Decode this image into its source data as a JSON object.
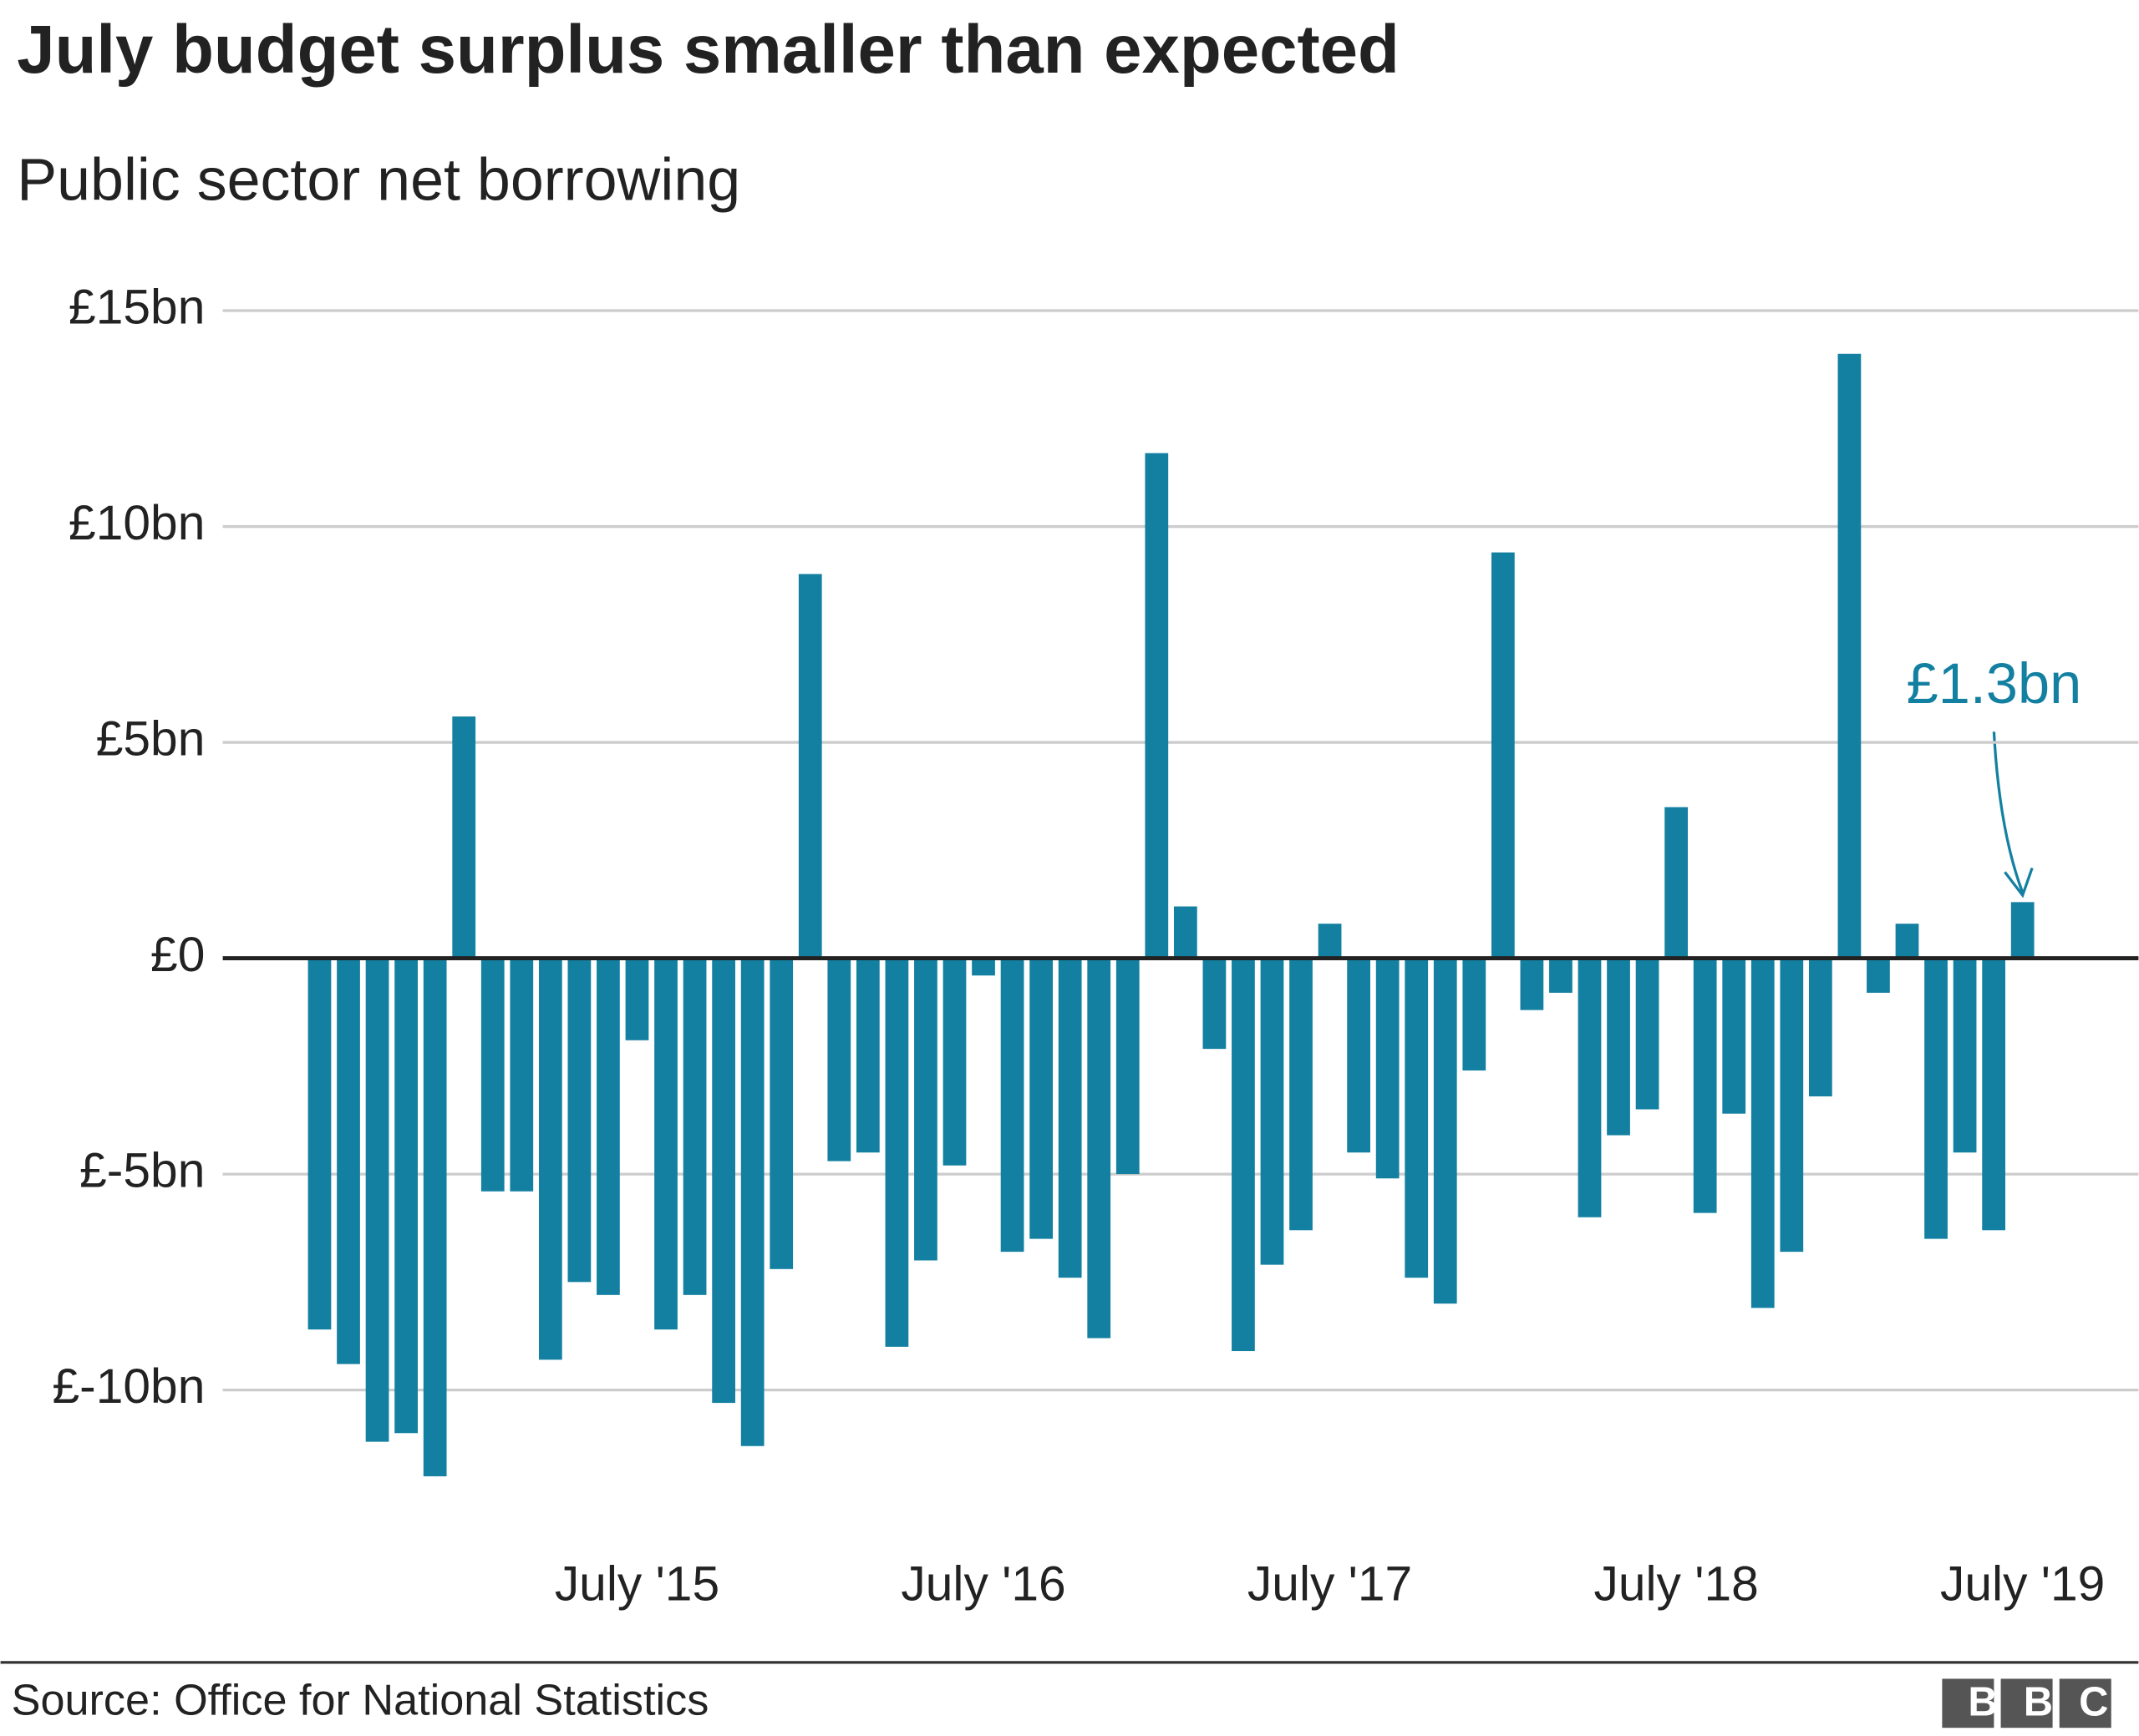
{
  "chart_data": {
    "type": "bar",
    "title": "July budget surplus smaller than expected",
    "subtitle": "Public sector net borrowing",
    "source": "Source: Office for National Statistics",
    "logo": "BBC",
    "color": "#1380a1",
    "grid": true,
    "ylim": [
      -12.5,
      15.5
    ],
    "yticks": [
      {
        "value": -10,
        "label": "£-10bn"
      },
      {
        "value": -5,
        "label": "£-5bn"
      },
      {
        "value": 0,
        "label": "£0"
      },
      {
        "value": 5,
        "label": "£5bn"
      },
      {
        "value": 10,
        "label": "£10bn"
      },
      {
        "value": 15,
        "label": "£15bn"
      }
    ],
    "categories": [
      null,
      null,
      null,
      null,
      null,
      null,
      null,
      null,
      null,
      null,
      null,
      "July '15",
      null,
      null,
      null,
      null,
      null,
      null,
      null,
      null,
      null,
      null,
      null,
      "July '16",
      null,
      null,
      null,
      null,
      null,
      null,
      null,
      null,
      null,
      null,
      null,
      "July '17",
      null,
      null,
      null,
      null,
      null,
      null,
      null,
      null,
      null,
      null,
      null,
      "July '18",
      null,
      null,
      null,
      null,
      null,
      null,
      null,
      null,
      null,
      null,
      null,
      "July '19"
    ],
    "values": [
      -8.6,
      -9.4,
      -11.2,
      -11.0,
      -12.0,
      5.6,
      -5.4,
      -5.4,
      -9.3,
      -7.5,
      -7.8,
      -1.9,
      -8.6,
      -7.8,
      -10.3,
      -11.3,
      -7.2,
      8.9,
      -4.7,
      -4.5,
      -9.0,
      -7.0,
      -4.8,
      -0.4,
      -6.8,
      -6.5,
      -7.4,
      -8.8,
      -5.0,
      11.7,
      1.2,
      -2.1,
      -9.1,
      -7.1,
      -6.3,
      0.8,
      -4.5,
      -5.1,
      -7.4,
      -8.0,
      -2.6,
      9.4,
      -1.2,
      -0.8,
      -6.0,
      -4.1,
      -3.5,
      3.5,
      -5.9,
      -3.6,
      -8.1,
      -6.8,
      -3.2,
      14.0,
      -0.8,
      0.8,
      -6.5,
      -4.5,
      -6.3,
      1.3
    ],
    "value_labels": [
      null,
      null,
      null,
      null,
      null,
      null,
      null,
      null,
      null,
      null,
      null,
      null,
      null,
      null,
      null,
      null,
      null,
      null,
      null,
      null,
      null,
      null,
      null,
      null,
      null,
      null,
      null,
      null,
      null,
      null,
      null,
      null,
      null,
      null,
      null,
      null,
      null,
      null,
      null,
      null,
      null,
      null,
      null,
      null,
      null,
      null,
      null,
      null,
      null,
      null,
      null,
      null,
      null,
      null,
      null,
      null,
      null,
      null,
      null,
      "£1.3bn"
    ]
  }
}
